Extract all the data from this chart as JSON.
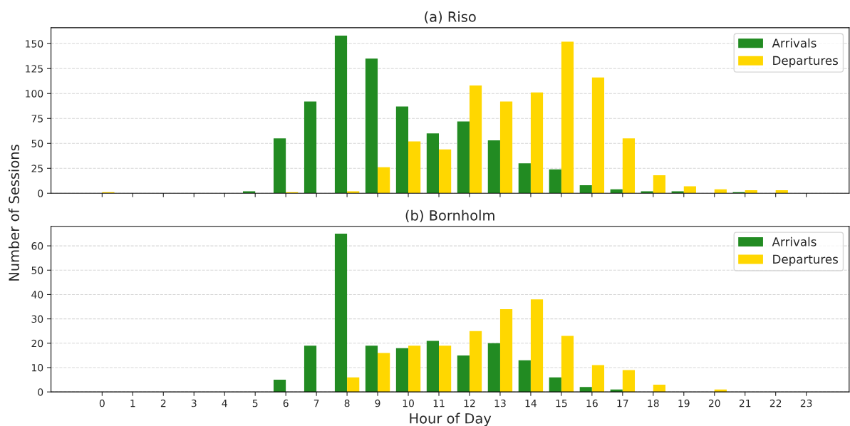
{
  "chart_data": [
    {
      "type": "bar",
      "title": "(a) Riso",
      "ylabel": "Number of Sessions",
      "x": [
        0,
        1,
        2,
        3,
        4,
        5,
        6,
        7,
        8,
        9,
        10,
        11,
        12,
        13,
        14,
        15,
        16,
        17,
        18,
        19,
        20,
        21,
        22,
        23
      ],
      "series": [
        {
          "name": "Arrivals",
          "color": "#228b22",
          "values": [
            0,
            0,
            0,
            0,
            0,
            2,
            55,
            92,
            158,
            135,
            87,
            60,
            72,
            53,
            30,
            24,
            8,
            4,
            2,
            2,
            0,
            1,
            0,
            0
          ]
        },
        {
          "name": "Departures",
          "color": "#ffd700",
          "values": [
            1,
            0,
            0,
            0,
            0,
            0,
            1,
            0,
            2,
            26,
            52,
            44,
            108,
            92,
            101,
            152,
            116,
            55,
            18,
            7,
            4,
            3,
            3,
            0
          ]
        }
      ],
      "xlim": [
        -1.67,
        24.4
      ],
      "xticks": [
        0,
        1,
        2,
        3,
        4,
        5,
        6,
        7,
        8,
        9,
        10,
        11,
        12,
        13,
        14,
        15,
        16,
        17,
        18,
        19,
        20,
        21,
        22,
        23
      ],
      "ylim": [
        0,
        166
      ],
      "yticks": [
        0,
        25,
        50,
        75,
        100,
        125,
        150
      ],
      "grid": "y",
      "legend": "top right",
      "tick_labels": "y"
    },
    {
      "type": "bar",
      "title": "(b) Bornholm",
      "xlabel": "Hour of Day",
      "x": [
        0,
        1,
        2,
        3,
        4,
        5,
        6,
        7,
        8,
        9,
        10,
        11,
        12,
        13,
        14,
        15,
        16,
        17,
        18,
        19,
        20,
        21,
        22,
        23
      ],
      "series": [
        {
          "name": "Arrivals",
          "color": "#228b22",
          "values": [
            0,
            0,
            0,
            0,
            0,
            0,
            5,
            19,
            65,
            19,
            18,
            21,
            15,
            20,
            13,
            6,
            2,
            1,
            0,
            0,
            0,
            0,
            0,
            0
          ]
        },
        {
          "name": "Departures",
          "color": "#ffd700",
          "values": [
            0,
            0,
            0,
            0,
            0,
            0,
            0,
            0,
            6,
            16,
            19,
            19,
            25,
            34,
            38,
            23,
            11,
            9,
            3,
            0,
            1,
            0,
            0,
            0
          ]
        }
      ],
      "xlim": [
        -1.67,
        24.4
      ],
      "xticks": [
        0,
        1,
        2,
        3,
        4,
        5,
        6,
        7,
        8,
        9,
        10,
        11,
        12,
        13,
        14,
        15,
        16,
        17,
        18,
        19,
        20,
        21,
        22,
        23
      ],
      "ylim": [
        0,
        68
      ],
      "yticks": [
        0,
        10,
        20,
        30,
        40,
        50,
        60
      ],
      "grid": "y",
      "legend": "top right"
    }
  ]
}
